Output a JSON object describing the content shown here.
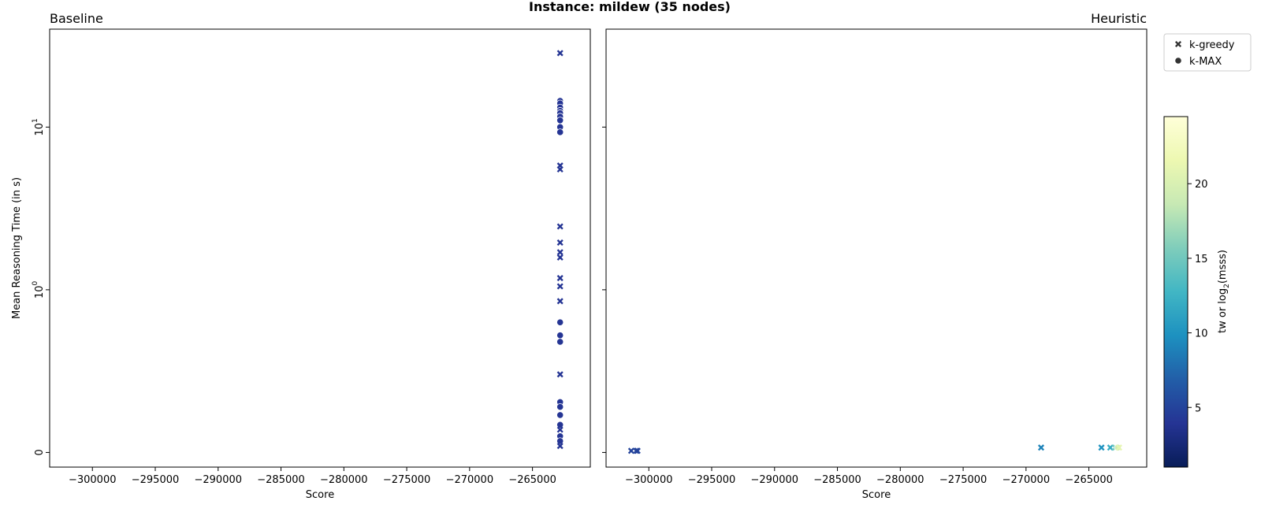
{
  "suptitle": "Instance: mildew (35 nodes)",
  "chart_data": {
    "type": "scatter",
    "shared_y": true,
    "y_scale": "symlog",
    "y_linthresh": 1,
    "ylabel": "Mean Reasoning Time (in s)",
    "y_ticks": [
      {
        "value": 0,
        "label": "0"
      },
      {
        "value": 1,
        "label": "10",
        "exp": "0"
      },
      {
        "value": 10,
        "label": "10",
        "exp": "1"
      }
    ],
    "xlim": [
      -303400,
      -260400
    ],
    "x_ticks": [
      -300000,
      -295000,
      -290000,
      -285000,
      -280000,
      -275000,
      -270000,
      -265000
    ],
    "x_tick_labels": [
      "−300000",
      "−295000",
      "−290000",
      "−285000",
      "−280000",
      "−275000",
      "−270000",
      "−265000"
    ],
    "legend": {
      "placement": "upper right outside",
      "entries": [
        {
          "marker": "x",
          "label": "k-greedy"
        },
        {
          "marker": "o",
          "label": "k-MAX"
        }
      ]
    },
    "colorbar": {
      "label": "tw or log",
      "label_sub": "2",
      "label_tail": "(msss)",
      "colormap": "YlGnBu_r",
      "range": [
        1,
        24.5
      ],
      "ticks": [
        5,
        10,
        15,
        20
      ],
      "tick_labels": [
        "5",
        "10",
        "15",
        "20"
      ],
      "stops": [
        "#081d58",
        "#253494",
        "#225ea8",
        "#1d91c0",
        "#41b6c4",
        "#7fcdbb",
        "#c7e9b4",
        "#edf8b1",
        "#ffffd9"
      ]
    },
    "panels": [
      {
        "title": "Baseline",
        "xlabel": "Score",
        "points": [
          {
            "x": -262800,
            "y": 28.5,
            "marker": "x",
            "c": 4
          },
          {
            "x": -262800,
            "y": 14.5,
            "marker": "o",
            "c": 4
          },
          {
            "x": -262800,
            "y": 14.0,
            "marker": "o",
            "c": 4
          },
          {
            "x": -262800,
            "y": 13.2,
            "marker": "o",
            "c": 4
          },
          {
            "x": -262800,
            "y": 12.6,
            "marker": "o",
            "c": 4
          },
          {
            "x": -262800,
            "y": 12.2,
            "marker": "o",
            "c": 4
          },
          {
            "x": -262800,
            "y": 11.6,
            "marker": "o",
            "c": 4
          },
          {
            "x": -262800,
            "y": 11.0,
            "marker": "o",
            "c": 4
          },
          {
            "x": -262800,
            "y": 10.0,
            "marker": "o",
            "c": 4
          },
          {
            "x": -262800,
            "y": 9.3,
            "marker": "o",
            "c": 4
          },
          {
            "x": -262800,
            "y": 5.8,
            "marker": "x",
            "c": 4
          },
          {
            "x": -262800,
            "y": 5.5,
            "marker": "x",
            "c": 4
          },
          {
            "x": -262800,
            "y": 2.45,
            "marker": "x",
            "c": 4
          },
          {
            "x": -262800,
            "y": 1.95,
            "marker": "x",
            "c": 4
          },
          {
            "x": -262800,
            "y": 1.7,
            "marker": "x",
            "c": 4
          },
          {
            "x": -262800,
            "y": 1.58,
            "marker": "x",
            "c": 4
          },
          {
            "x": -262800,
            "y": 1.18,
            "marker": "x",
            "c": 4
          },
          {
            "x": -262800,
            "y": 1.05,
            "marker": "x",
            "c": 4
          },
          {
            "x": -262800,
            "y": 0.93,
            "marker": "x",
            "c": 4
          },
          {
            "x": -262800,
            "y": 0.8,
            "marker": "o",
            "c": 4
          },
          {
            "x": -262800,
            "y": 0.72,
            "marker": "o",
            "c": 4
          },
          {
            "x": -262800,
            "y": 0.68,
            "marker": "o",
            "c": 4
          },
          {
            "x": -262800,
            "y": 0.48,
            "marker": "x",
            "c": 4
          },
          {
            "x": -262800,
            "y": 0.31,
            "marker": "o",
            "c": 4
          },
          {
            "x": -262800,
            "y": 0.28,
            "marker": "o",
            "c": 4
          },
          {
            "x": -262800,
            "y": 0.23,
            "marker": "o",
            "c": 4
          },
          {
            "x": -262800,
            "y": 0.17,
            "marker": "o",
            "c": 4
          },
          {
            "x": -262800,
            "y": 0.14,
            "marker": "x",
            "c": 4
          },
          {
            "x": -262800,
            "y": 0.1,
            "marker": "o",
            "c": 4
          },
          {
            "x": -262800,
            "y": 0.07,
            "marker": "o",
            "c": 4
          },
          {
            "x": -262800,
            "y": 0.04,
            "marker": "x",
            "c": 4
          }
        ]
      },
      {
        "title": "Heuristic",
        "xlabel": "Score",
        "points": [
          {
            "x": -301400,
            "y": 0.01,
            "marker": "x",
            "c": 5
          },
          {
            "x": -301000,
            "y": 0.01,
            "marker": "x",
            "c": 5
          },
          {
            "x": -300900,
            "y": 0.01,
            "marker": "x",
            "c": 5
          },
          {
            "x": -268800,
            "y": 0.03,
            "marker": "x",
            "c": 9
          },
          {
            "x": -264000,
            "y": 0.03,
            "marker": "x",
            "c": 10
          },
          {
            "x": -263300,
            "y": 0.03,
            "marker": "x",
            "c": 12
          },
          {
            "x": -262900,
            "y": 0.03,
            "marker": "x",
            "c": 15
          },
          {
            "x": -262700,
            "y": 0.03,
            "marker": "o",
            "c": 19
          },
          {
            "x": -262600,
            "y": 0.03,
            "marker": "x",
            "c": 21
          }
        ]
      }
    ]
  }
}
